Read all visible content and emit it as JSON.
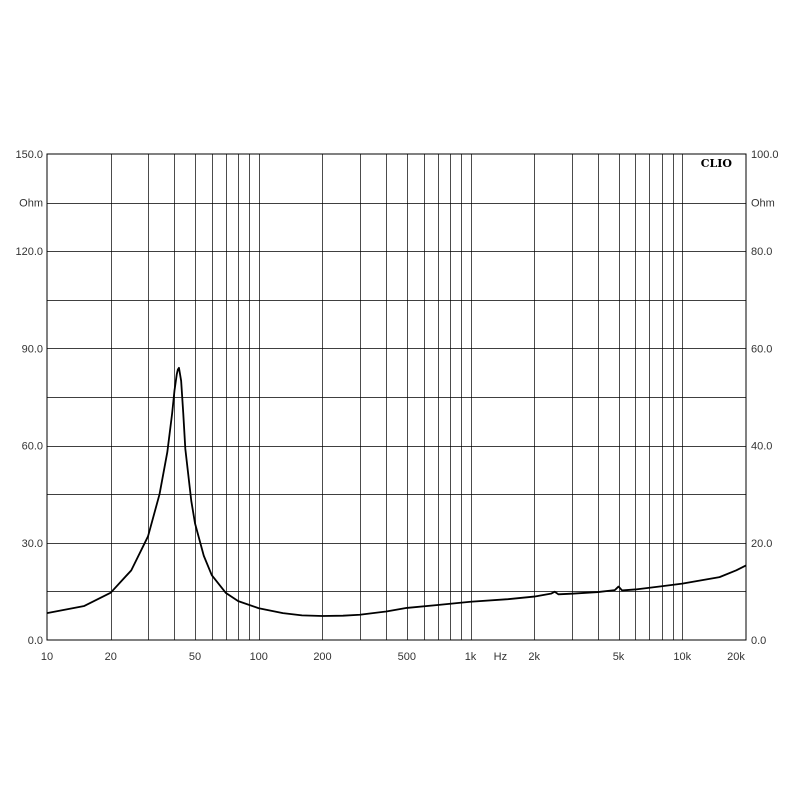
{
  "chart_data": {
    "type": "line",
    "brand": "CLIO",
    "x_scale": "log",
    "xlim": [
      10,
      20000
    ],
    "x_unit": "Hz",
    "x_ticks": [
      {
        "value": 10,
        "label": "10"
      },
      {
        "value": 20,
        "label": "20"
      },
      {
        "value": 50,
        "label": "50"
      },
      {
        "value": 100,
        "label": "100"
      },
      {
        "value": 200,
        "label": "200"
      },
      {
        "value": 500,
        "label": "500"
      },
      {
        "value": 1000,
        "label": "1k"
      },
      {
        "value": 2000,
        "label": "2k"
      },
      {
        "value": 5000,
        "label": "5k"
      },
      {
        "value": 10000,
        "label": "10k"
      },
      {
        "value": 20000,
        "label": "20k"
      }
    ],
    "y_left": {
      "lim": [
        0,
        150
      ],
      "unit": "Ohm",
      "ticks": [
        {
          "value": 150,
          "label": "150.0"
        },
        {
          "value": 120,
          "label": "120.0"
        },
        {
          "value": 90,
          "label": "90.0"
        },
        {
          "value": 60,
          "label": "60.0"
        },
        {
          "value": 30,
          "label": "30.0"
        },
        {
          "value": 0,
          "label": "0.0"
        }
      ]
    },
    "y_right": {
      "lim": [
        0,
        100
      ],
      "unit": "Ohm",
      "ticks": [
        {
          "value": 100,
          "label": "100.0"
        },
        {
          "value": 80,
          "label": "80.0"
        },
        {
          "value": 60,
          "label": "60.0"
        },
        {
          "value": 40,
          "label": "40.0"
        },
        {
          "value": 20,
          "label": "20.0"
        },
        {
          "value": 0,
          "label": "0.0"
        }
      ]
    },
    "grid": true,
    "series": [
      {
        "color": "#000000",
        "x": [
          10,
          15,
          20,
          25,
          30,
          34,
          37,
          39,
          40,
          41,
          41.5,
          42,
          43,
          44,
          45,
          48,
          50,
          55,
          60,
          70,
          80,
          100,
          130,
          160,
          200,
          250,
          300,
          400,
          500,
          700,
          1000,
          1500,
          2000,
          2400,
          2500,
          2600,
          3000,
          4000,
          4800,
          5000,
          5200,
          6000,
          8000,
          10000,
          15000,
          18000,
          20000
        ],
        "y": [
          8.3,
          10.5,
          14.6,
          21.5,
          32,
          45,
          58,
          70,
          77,
          82,
          83.5,
          84,
          80,
          70,
          59,
          43,
          36,
          26,
          20,
          14.5,
          12,
          9.8,
          8.3,
          7.6,
          7.4,
          7.5,
          7.8,
          8.8,
          9.9,
          10.8,
          11.8,
          12.6,
          13.4,
          14.3,
          14.9,
          14.1,
          14.3,
          14.8,
          15.4,
          16.5,
          15.3,
          15.6,
          16.6,
          17.4,
          19.4,
          21.5,
          23
        ]
      }
    ]
  }
}
